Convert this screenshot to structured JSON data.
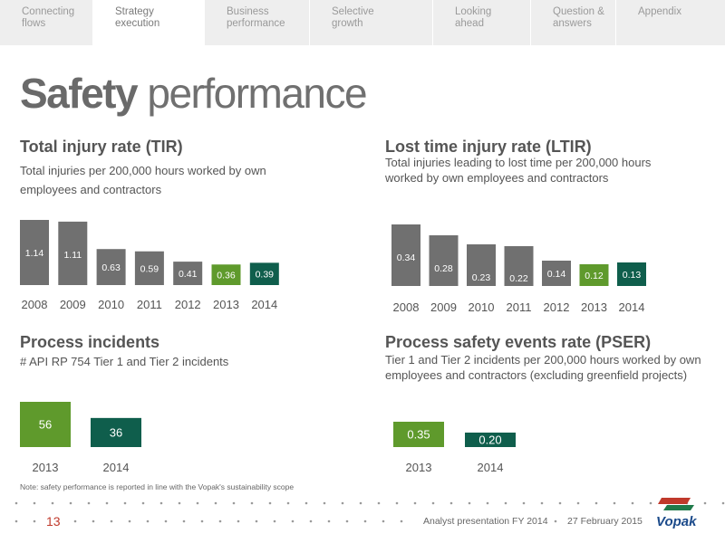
{
  "nav": {
    "tabs": [
      {
        "label": "Connecting\nflows",
        "active": false
      },
      {
        "label": "Strategy\nexecution",
        "active": true
      },
      {
        "label": "Business\nperformance",
        "active": false
      },
      {
        "label": "Selective\ngrowth",
        "active": false
      },
      {
        "label": "Looking\nahead",
        "active": false
      },
      {
        "label": "Question &\nanswers",
        "active": false
      },
      {
        "label": "Appendix",
        "active": false
      }
    ]
  },
  "page": {
    "title_bold": "Safety",
    "title_rest": " performance"
  },
  "colors": {
    "gray": "#707070",
    "light_green": "#5f9a2c",
    "dark_green": "#0f5e4c",
    "page_number": "#c0392b"
  },
  "panels": {
    "tir": {
      "title": "Total injury rate (TIR)",
      "subtitle": "Total injuries per 200,000 hours worked by own employees and contractors"
    },
    "ltir": {
      "title": "Lost time injury rate (LTIR)",
      "subtitle": "Total injuries leading to lost time per 200,000 hours worked by own employees and contractors"
    },
    "process": {
      "title": "Process incidents",
      "subtitle": "# API RP 754 Tier 1 and Tier 2 incidents"
    },
    "pser": {
      "title": "Process safety events rate (PSER)",
      "subtitle": "Tier 1 and Tier 2 incidents per 200,000 hours worked by own employees and contractors (excluding greenfield projects)"
    }
  },
  "chart_data": [
    {
      "id": "tir",
      "type": "bar",
      "title": "Total injury rate (TIR)",
      "categories": [
        "2008",
        "2009",
        "2010",
        "2011",
        "2012",
        "2013",
        "2014"
      ],
      "values": [
        1.14,
        1.11,
        0.63,
        0.59,
        0.41,
        0.36,
        0.39
      ],
      "labels": [
        "1.14",
        "1.11",
        "0.63",
        "0.59",
        "0.41",
        "0.36",
        "0.39"
      ],
      "bar_colors": [
        "#707070",
        "#707070",
        "#707070",
        "#707070",
        "#707070",
        "#5f9a2c",
        "#0f5e4c"
      ],
      "ylim": [
        0,
        1.14
      ]
    },
    {
      "id": "ltir",
      "type": "bar",
      "title": "Lost time injury rate (LTIR)",
      "categories": [
        "2008",
        "2009",
        "2010",
        "2011",
        "2012",
        "2013",
        "2014"
      ],
      "values": [
        0.34,
        0.28,
        0.23,
        0.22,
        0.14,
        0.12,
        0.13
      ],
      "labels": [
        "0.34",
        "0.28",
        "0.23",
        "0.22",
        "0.14",
        "0.12",
        "0.13"
      ],
      "bar_colors": [
        "#707070",
        "#707070",
        "#707070",
        "#707070",
        "#707070",
        "#5f9a2c",
        "#0f5e4c"
      ],
      "ylim": [
        0,
        0.34
      ]
    },
    {
      "id": "process",
      "type": "bar",
      "title": "Process incidents",
      "categories": [
        "2013",
        "2014"
      ],
      "values": [
        56,
        36
      ],
      "labels": [
        "56",
        "36"
      ],
      "bar_colors": [
        "#5f9a2c",
        "#0f5e4c"
      ],
      "ylim": [
        0,
        56
      ]
    },
    {
      "id": "pser",
      "type": "bar",
      "title": "Process safety events rate (PSER)",
      "categories": [
        "2013",
        "2014"
      ],
      "values": [
        0.35,
        0.2
      ],
      "labels": [
        "0.35",
        "0.20"
      ],
      "bar_colors": [
        "#5f9a2c",
        "#0f5e4c"
      ],
      "ylim": [
        0,
        0.35
      ]
    }
  ],
  "note": "Note: safety performance is reported in line with the Vopak's sustainability scope",
  "footer": {
    "page_number": "13",
    "presentation": "Analyst presentation FY 2014",
    "date": "27 February 2015",
    "logo_text": "Vopak"
  }
}
